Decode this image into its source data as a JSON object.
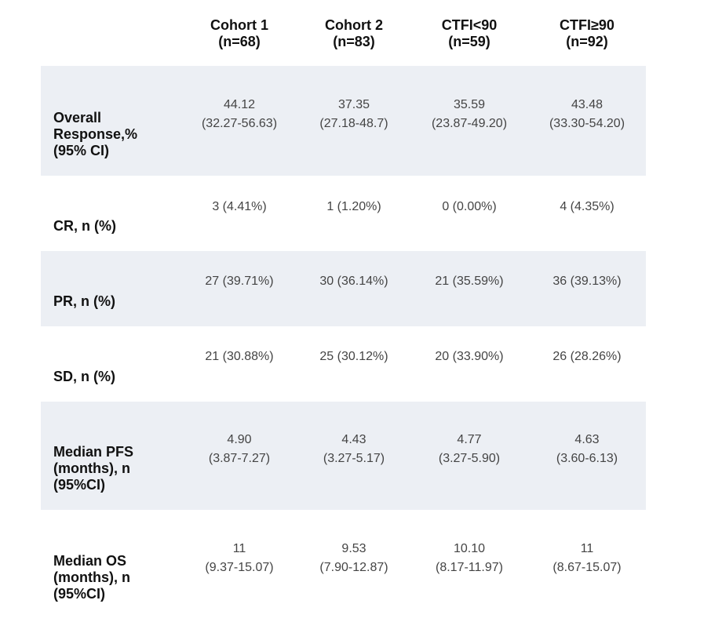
{
  "headers": [
    {
      "line1": "Cohort 1",
      "line2": "(n=68)"
    },
    {
      "line1": "Cohort 2",
      "line2": "(n=83)"
    },
    {
      "line1": "CTFI<90",
      "line2": "(n=59)"
    },
    {
      "line1": "CTFI≥90",
      "line2": "(n=92)"
    }
  ],
  "rows": [
    {
      "label": [
        "Overall",
        "Response,%",
        "(95% CI)"
      ],
      "cells": [
        {
          "line1": "44.12",
          "line2": "(32.27-56.63)"
        },
        {
          "line1": "37.35",
          "line2": "(27.18-48.7)"
        },
        {
          "line1": "35.59",
          "line2": "(23.87-49.20)"
        },
        {
          "line1": "43.48",
          "line2": "(33.30-54.20)"
        }
      ]
    },
    {
      "label": [
        "CR, n (%)"
      ],
      "cells": [
        {
          "line1": "3 (4.41%)"
        },
        {
          "line1": "1 (1.20%)"
        },
        {
          "line1": "0 (0.00%)"
        },
        {
          "line1": "4 (4.35%)"
        }
      ]
    },
    {
      "label": [
        "PR, n (%)"
      ],
      "cells": [
        {
          "line1": "27 (39.71%)"
        },
        {
          "line1": "30 (36.14%)"
        },
        {
          "line1": "21 (35.59%)"
        },
        {
          "line1": "36 (39.13%)"
        }
      ]
    },
    {
      "label": [
        "SD, n (%)"
      ],
      "cells": [
        {
          "line1": "21 (30.88%)"
        },
        {
          "line1": "25 (30.12%)"
        },
        {
          "line1": "20 (33.90%)"
        },
        {
          "line1": "26 (28.26%)"
        }
      ]
    },
    {
      "label": [
        "Median PFS",
        "(months), n",
        "(95%CI)"
      ],
      "cells": [
        {
          "line1": "4.90",
          "line2": "(3.87-7.27)"
        },
        {
          "line1": "4.43",
          "line2": "(3.27-5.17)"
        },
        {
          "line1": "4.77",
          "line2": "(3.27-5.90)"
        },
        {
          "line1": "4.63",
          "line2": "(3.60-6.13)"
        }
      ]
    },
    {
      "label": [
        "Median OS",
        "(months), n",
        "(95%CI)"
      ],
      "cells": [
        {
          "line1": "11",
          "line2": "(9.37-15.07)"
        },
        {
          "line1": "9.53",
          "line2": "(7.90-12.87)"
        },
        {
          "line1": "10.10",
          "line2": "(8.17-11.97)"
        },
        {
          "line1": "11",
          "line2": "(8.67-15.07)"
        }
      ]
    }
  ]
}
